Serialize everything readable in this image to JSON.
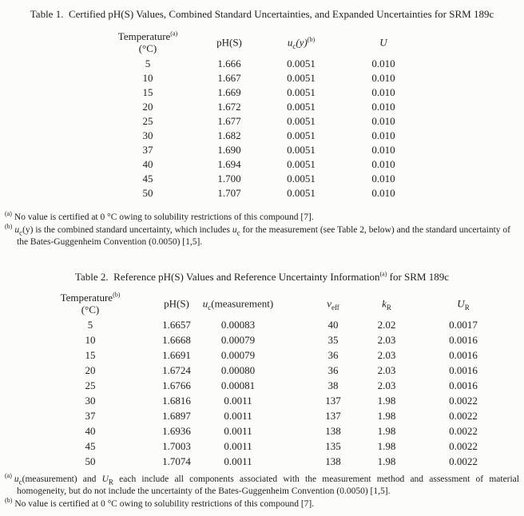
{
  "page": {
    "background": "#fcfcfb",
    "text_color": "#1e1e1e"
  },
  "table1": {
    "title": "Table 1.  Certified pH(S) Values, Combined Standard Uncertainties, and Expanded Uncertainties for SRM 189c",
    "headers": {
      "temp_label": "Temperature",
      "temp_sup": "(a)",
      "temp_unit": "(°C)",
      "ph": "pH(S)",
      "uc_sym": "u",
      "uc_sub": "c",
      "uc_arg": "(y)",
      "uc_sup": "(b)",
      "u_expanded": "U"
    },
    "rows": [
      {
        "t": "5",
        "ph": "1.666",
        "uc": "0.0051",
        "u": "0.010"
      },
      {
        "t": "10",
        "ph": "1.667",
        "uc": "0.0051",
        "u": "0.010"
      },
      {
        "t": "15",
        "ph": "1.669",
        "uc": "0.0051",
        "u": "0.010"
      },
      {
        "t": "20",
        "ph": "1.672",
        "uc": "0.0051",
        "u": "0.010"
      },
      {
        "t": "25",
        "ph": "1.677",
        "uc": "0.0051",
        "u": "0.010"
      },
      {
        "t": "30",
        "ph": "1.682",
        "uc": "0.0051",
        "u": "0.010"
      },
      {
        "t": "37",
        "ph": "1.690",
        "uc": "0.0051",
        "u": "0.010"
      },
      {
        "t": "40",
        "ph": "1.694",
        "uc": "0.0051",
        "u": "0.010"
      },
      {
        "t": "45",
        "ph": "1.700",
        "uc": "0.0051",
        "u": "0.010"
      },
      {
        "t": "50",
        "ph": "1.707",
        "uc": "0.0051",
        "u": "0.010"
      }
    ],
    "footnote_a": {
      "marker": "(a)",
      "text": "No value is certified at 0 °C owing to solubility restrictions of this compound [7]."
    },
    "footnote_b": {
      "marker": "(b)",
      "u1": "u",
      "sub1": "c",
      "t1": "(y) is the combined standard uncertainty, which includes ",
      "u2": "u",
      "sub2": "c",
      "t2": " for the measurement (see Table 2, below) and the standard uncertainty of the Bates-Guggenheim Convention (0.0050) [1,5]."
    }
  },
  "table2": {
    "title_pre": "Table 2.  Reference pH(S) Values and Reference Uncertainty Information",
    "title_sup": "(a)",
    "title_post": " for SRM 189c",
    "headers": {
      "temp_label": "Temperature",
      "temp_sup": "(b)",
      "temp_unit": "(°C)",
      "ph": "pH(S)",
      "uc_sym": "u",
      "uc_sub": "c",
      "uc_arg": "(measurement)",
      "veff_sym": "v",
      "veff_sub": "eff",
      "k_sym": "k",
      "k_sub": "R",
      "ur_sym": "U",
      "ur_sub": "R"
    },
    "rows": [
      {
        "t": "5",
        "ph": "1.6657",
        "uc": "0.00083",
        "v": "40",
        "k": "2.02",
        "ur": "0.0017"
      },
      {
        "t": "10",
        "ph": "1.6668",
        "uc": "0.00079",
        "v": "35",
        "k": "2.03",
        "ur": "0.0016"
      },
      {
        "t": "15",
        "ph": "1.6691",
        "uc": "0.00079",
        "v": "36",
        "k": "2.03",
        "ur": "0.0016"
      },
      {
        "t": "20",
        "ph": "1.6724",
        "uc": "0.00080",
        "v": "36",
        "k": "2.03",
        "ur": "0.0016"
      },
      {
        "t": "25",
        "ph": "1.6766",
        "uc": "0.00081",
        "v": "38",
        "k": "2.03",
        "ur": "0.0016"
      },
      {
        "t": "30",
        "ph": "1.6816",
        "uc": "0.0011",
        "v": "137",
        "k": "1.98",
        "ur": "0.0022"
      },
      {
        "t": "37",
        "ph": "1.6897",
        "uc": "0.0011",
        "v": "137",
        "k": "1.98",
        "ur": "0.0022"
      },
      {
        "t": "40",
        "ph": "1.6936",
        "uc": "0.0011",
        "v": "138",
        "k": "1.98",
        "ur": "0.0022"
      },
      {
        "t": "45",
        "ph": "1.7003",
        "uc": "0.0011",
        "v": "135",
        "k": "1.98",
        "ur": "0.0022"
      },
      {
        "t": "50",
        "ph": "1.7074",
        "uc": "0.0011",
        "v": "138",
        "k": "1.98",
        "ur": "0.0022"
      }
    ],
    "footnote_a": {
      "marker": "(a)",
      "u1": "u",
      "sub1": "c",
      "t1": "(measurement) and ",
      "u2": "U",
      "sub2": "R",
      "t2": " each include all components associated with the measurement method and assessment of material homogeneity, but do not include the uncertainty of the Bates-Guggenheim Convention (0.0050) [1,5]."
    },
    "footnote_b": {
      "marker": "(b)",
      "text": "No value is certified at 0 °C owing to solubility restrictions of this compound [7]."
    }
  }
}
